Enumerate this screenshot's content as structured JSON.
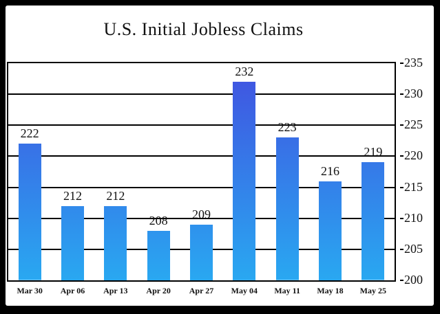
{
  "title": "U.S. Initial Jobless Claims",
  "colors": {
    "frame_background": "#000000",
    "chart_background": "#ffffff",
    "bar_gradient_top": "#4150e0",
    "bar_gradient_bottom": "#29a8f1",
    "gridline": "#000000",
    "text": "#111111"
  },
  "chart_data": {
    "type": "bar",
    "title": "U.S. Initial Jobless Claims",
    "categories": [
      "Mar 30",
      "Apr 06",
      "Apr 13",
      "Apr 20",
      "Apr 27",
      "May 04",
      "May 11",
      "May 18",
      "May 25"
    ],
    "values": [
      222,
      212,
      212,
      208,
      209,
      232,
      223,
      216,
      219
    ],
    "value_labels": [
      "222",
      "212",
      "212",
      "208",
      "209",
      "232",
      "223",
      "216",
      "219"
    ],
    "xlabel": "",
    "ylabel": "",
    "ylim": [
      200,
      235
    ],
    "yticks": [
      235,
      230,
      225,
      220,
      215,
      210,
      205,
      200
    ],
    "ytick_labels": [
      "235",
      "230",
      "225",
      "220",
      "215",
      "210",
      "205",
      "200"
    ],
    "grid": true,
    "axis_side": "right",
    "legend": false
  }
}
